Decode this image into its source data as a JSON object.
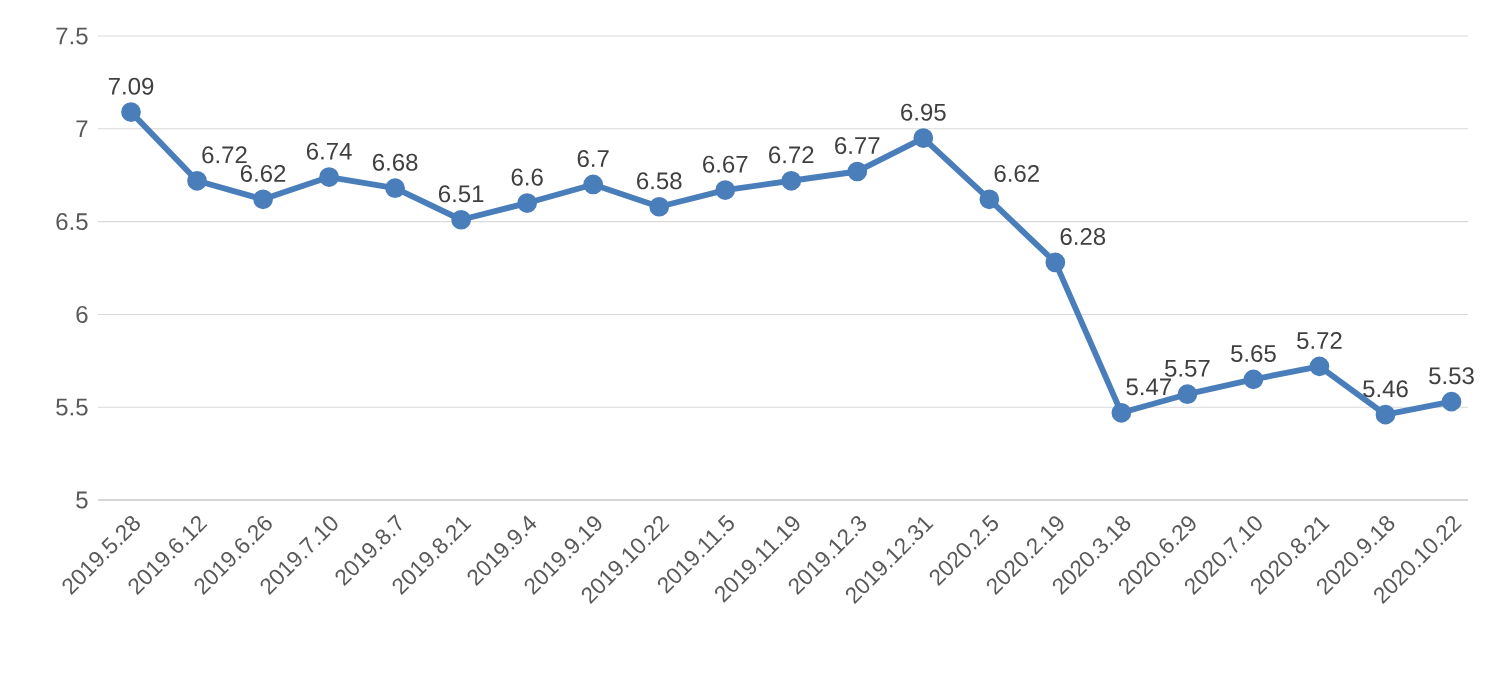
{
  "chart_data": {
    "type": "line",
    "categories": [
      "2019.5.28",
      "2019.6.12",
      "2019.6.26",
      "2019.7.10",
      "2019.8.7",
      "2019.8.21",
      "2019.9.4",
      "2019.9.19",
      "2019.10.22",
      "2019.11.5",
      "2019.11.19",
      "2019.12.3",
      "2019.12.31",
      "2020.2.5",
      "2020.2.19",
      "2020.3.18",
      "2020.6.29",
      "2020.7.10",
      "2020.8.21",
      "2020.9.18",
      "2020.10.22"
    ],
    "values": [
      7.09,
      6.72,
      6.62,
      6.74,
      6.68,
      6.51,
      6.6,
      6.7,
      6.58,
      6.67,
      6.72,
      6.77,
      6.95,
      6.62,
      6.28,
      5.47,
      5.57,
      5.65,
      5.72,
      5.46,
      5.53
    ],
    "color": "#4a7ebb",
    "marker": "circle",
    "line_style": "solid",
    "data_labels": true,
    "grid": "y",
    "ylim": [
      5,
      7.5
    ],
    "yticks": [
      5,
      5.5,
      6,
      6.5,
      7,
      7.5
    ]
  }
}
